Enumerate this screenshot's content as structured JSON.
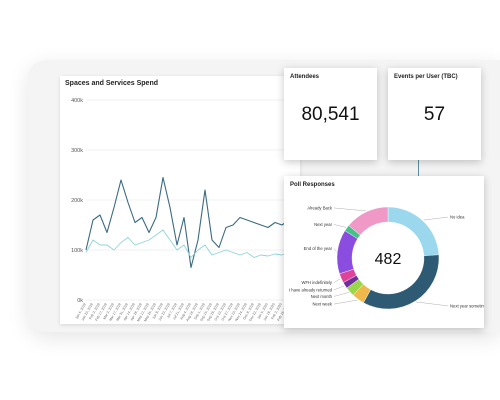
{
  "spaces_spend": {
    "title": "Spaces and Services Spend"
  },
  "attendees": {
    "title": "Attendees",
    "value": "80,541"
  },
  "events_per_user": {
    "title": "Events per User (TBC)",
    "value": "57"
  },
  "poll": {
    "title": "Poll Responses",
    "total": "482"
  },
  "chart_data": [
    {
      "type": "line",
      "title": "Spaces and Services Spend",
      "xlabel": "",
      "ylabel": "",
      "ylim": [
        0,
        400
      ],
      "y_ticks": [
        "0k",
        "100k",
        "200k",
        "300k",
        "400k"
      ],
      "x": [
        "Jan 6, 2019",
        "Jan 20, 2019",
        "Feb 3, 2019",
        "Feb 17, 2019",
        "Mar 3, 2019",
        "Mar 17, 2019",
        "Mar 31, 2019",
        "Apr 14, 2019",
        "Apr 28, 2019",
        "May 12, 2019",
        "May 26, 2019",
        "Jun 9, 2019",
        "Jun 23, 2019",
        "Jul 7, 2019",
        "Jul 21, 2019",
        "Aug 4, 2019",
        "Aug 18, 2019",
        "Sep 1, 2019",
        "Sep 15, 2019",
        "Sep 29, 2019",
        "Oct 13, 2019",
        "Oct 27, 2019",
        "Nov 10, 2019",
        "Nov 24, 2019",
        "Dec 8, 2019",
        "Dec 22, 2019",
        "Jan 5, 2020",
        "Jan 19, 2020",
        "Feb 2, 2020",
        "Feb 16, 2020",
        "Mar 1, 2020"
      ],
      "series": [
        {
          "values": [
            100,
            160,
            170,
            135,
            185,
            240,
            195,
            155,
            165,
            135,
            165,
            245,
            185,
            110,
            165,
            65,
            120,
            220,
            120,
            105,
            145,
            150,
            165,
            160,
            155,
            150,
            145,
            155,
            150,
            160,
            165
          ]
        },
        {
          "values": [
            95,
            120,
            110,
            110,
            100,
            115,
            125,
            110,
            115,
            120,
            130,
            140,
            120,
            100,
            110,
            85,
            100,
            110,
            90,
            95,
            100,
            95,
            90,
            95,
            85,
            90,
            88,
            92,
            90,
            95,
            92
          ]
        }
      ],
      "colors": [
        "#3b6b82",
        "#8fd4d9"
      ],
      "grid": true
    },
    {
      "type": "pie",
      "title": "Poll Responses",
      "center_label": "482",
      "categories": [
        "No idea",
        "Next year sometime",
        "Next week",
        "Next month",
        "I have already returned",
        "WFH indefinitely",
        "End of the year",
        "Next year",
        "Already Back"
      ],
      "values": [
        24,
        34,
        4,
        3,
        2,
        3,
        14,
        2,
        14
      ],
      "colors": [
        "#9bd8ee",
        "#2f5a73",
        "#f0b84b",
        "#9ad64b",
        "#6d2f9e",
        "#e0429a",
        "#8a4de0",
        "#44c28a",
        "#f098c6"
      ]
    }
  ]
}
